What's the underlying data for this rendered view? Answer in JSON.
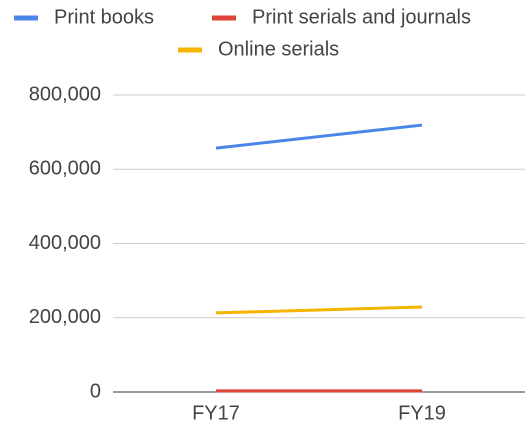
{
  "chart_data": {
    "type": "line",
    "categories": [
      "FY17",
      "FY19"
    ],
    "series": [
      {
        "name": "Print books",
        "color": "#4a86e8",
        "values": [
          657000,
          719000
        ]
      },
      {
        "name": "Print serials and journals",
        "color": "#db4437",
        "values": [
          3000,
          3000
        ]
      },
      {
        "name": "Online serials",
        "color": "#f4b400",
        "values": [
          213000,
          229000
        ]
      }
    ],
    "ylim": [
      0,
      800000
    ],
    "yticks": [
      0,
      {
        "value": 200000,
        "label": "200,000"
      },
      {
        "value": 400000,
        "label": "400,000"
      },
      {
        "value": 600000,
        "label": "600,000"
      },
      {
        "value": 800000,
        "label": "800,000"
      }
    ],
    "grid": true,
    "legend": "top"
  }
}
